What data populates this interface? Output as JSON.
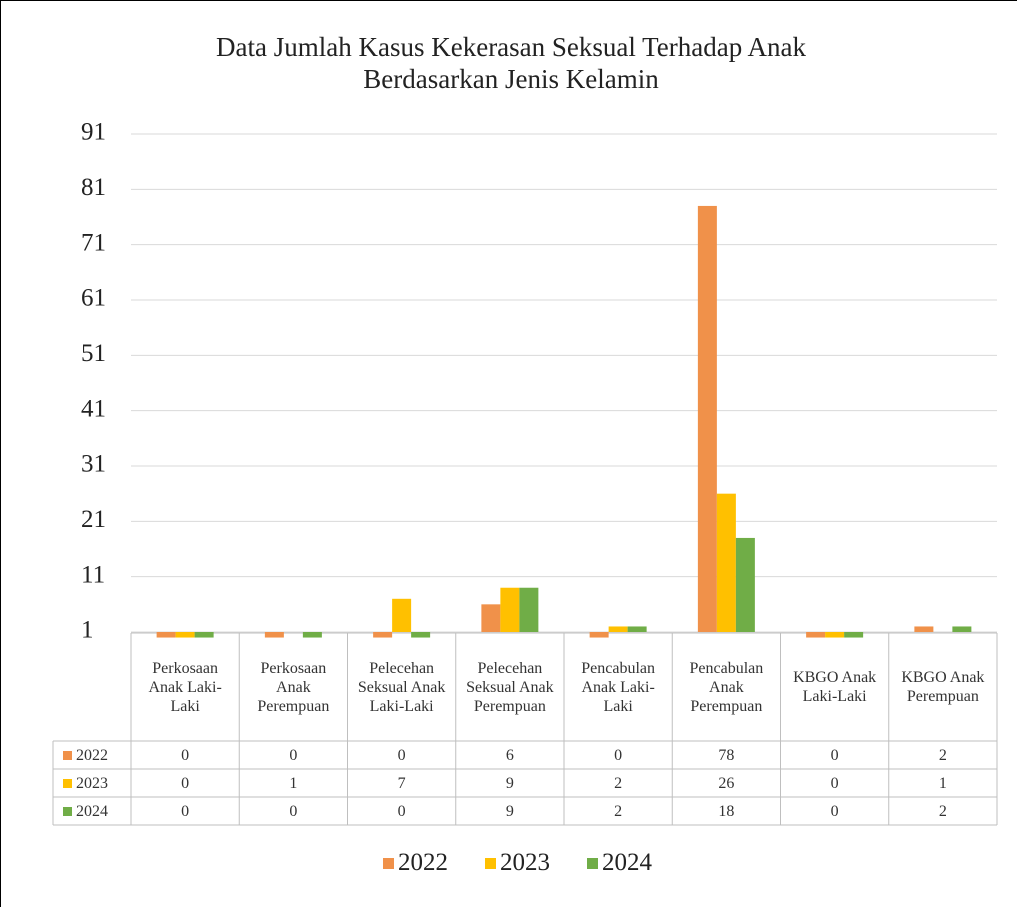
{
  "chart_data": {
    "type": "bar",
    "title": "Data Jumlah Kasus Kekerasan Seksual Terhadap Anak Berdasarkan Jenis Kelamin",
    "categories": [
      "Perkosaan Anak Laki-Laki",
      "Perkosaan Anak Perempuan",
      "Pelecehan Seksual Anak Laki-Laki",
      "Pelecehan Seksual Anak Perempuan",
      "Pencabulan Anak Laki-Laki",
      "Pencabulan Anak Perempuan",
      "KBGO Anak Laki-Laki",
      "KBGO Anak Perempuan"
    ],
    "series": [
      {
        "name": "2022",
        "color": "#f0914a",
        "values": [
          0,
          0,
          0,
          6,
          0,
          78,
          0,
          2
        ]
      },
      {
        "name": "2023",
        "color": "#ffc000",
        "values": [
          0,
          1,
          7,
          9,
          2,
          26,
          0,
          1
        ]
      },
      {
        "name": "2024",
        "color": "#70ad47",
        "values": [
          0,
          0,
          0,
          9,
          2,
          18,
          0,
          2
        ]
      }
    ],
    "ylim": [
      1,
      91
    ],
    "yticks": [
      1,
      11,
      21,
      31,
      41,
      51,
      61,
      71,
      81,
      91
    ],
    "grid": true
  }
}
